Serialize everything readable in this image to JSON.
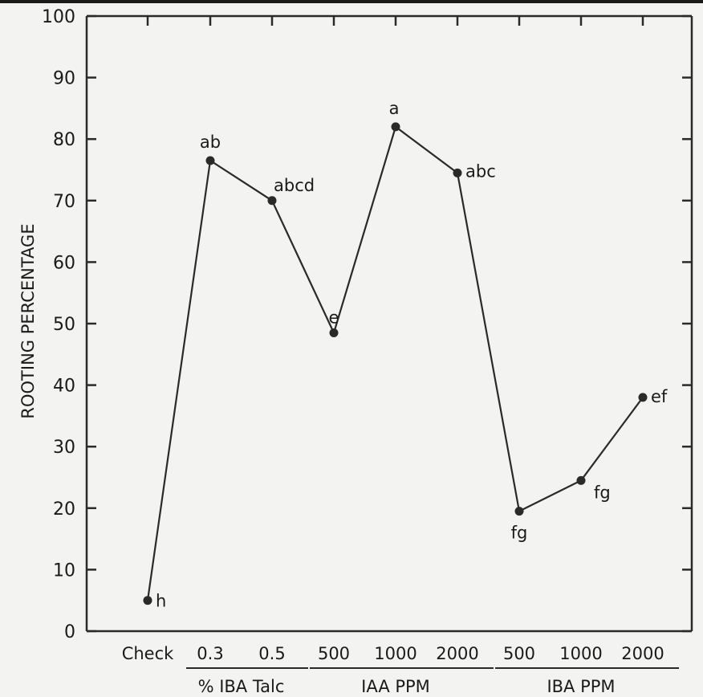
{
  "chart_data": {
    "type": "line",
    "title": "",
    "xlabel": "",
    "ylabel": "ROOTING PERCENTAGE",
    "ylim": [
      0,
      100
    ],
    "yticks": [
      0,
      10,
      20,
      30,
      40,
      50,
      60,
      70,
      80,
      90,
      100
    ],
    "grid": false,
    "categories": [
      "Check",
      "0.3",
      "0.5",
      "500",
      "1000",
      "2000",
      "500",
      "1000",
      "2000"
    ],
    "groups": [
      {
        "label": "% IBA Talc",
        "from": 1,
        "to": 2
      },
      {
        "label": "IAA PPM",
        "from": 3,
        "to": 5
      },
      {
        "label": "IBA PPM",
        "from": 6,
        "to": 8
      }
    ],
    "series": [
      {
        "values": [
          5,
          76.5,
          70,
          48.5,
          82,
          74.5,
          19.5,
          24.5,
          38
        ],
        "point_labels": [
          "h",
          "ab",
          "abcd",
          "e",
          "a",
          "abc",
          "fg",
          "fg",
          "ef"
        ]
      }
    ],
    "colors": {
      "line": "#2a2a2a",
      "background": "#f3f3f1"
    }
  }
}
